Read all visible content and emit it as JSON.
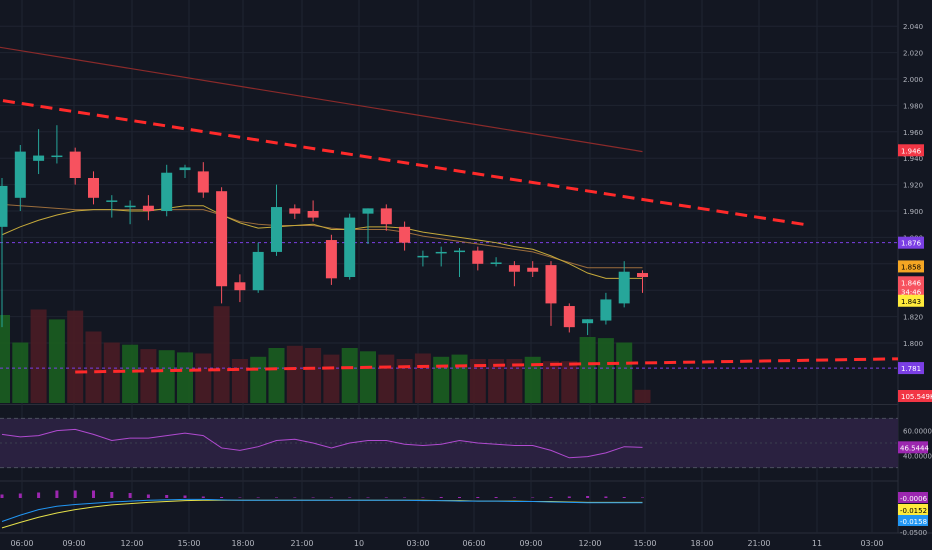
{
  "chart_data": {
    "type": "candlestick",
    "price_axis": {
      "ticks": [
        "2.040",
        "2.020",
        "2.000",
        "1.980",
        "1.960",
        "1.940",
        "1.920",
        "1.900",
        "1.880",
        "1.860",
        "1.840",
        "1.820",
        "1.800"
      ],
      "range": [
        1.797,
        2.048
      ]
    },
    "time_axis": {
      "ticks": [
        "06:00",
        "09:00",
        "12:00",
        "15:00",
        "18:00",
        "21:00",
        "10",
        "03:00",
        "06:00",
        "09:00",
        "12:00",
        "15:00",
        "18:00",
        "21:00",
        "11",
        "03:00"
      ]
    },
    "candles": [
      {
        "o": 1.888,
        "h": 1.925,
        "l": 1.812,
        "c": 1.919
      },
      {
        "o": 1.91,
        "h": 1.95,
        "l": 1.9,
        "c": 1.945
      },
      {
        "o": 1.938,
        "h": 1.962,
        "l": 1.928,
        "c": 1.942
      },
      {
        "o": 1.942,
        "h": 1.965,
        "l": 1.936,
        "c": 1.942
      },
      {
        "o": 1.945,
        "h": 1.948,
        "l": 1.92,
        "c": 1.925
      },
      {
        "o": 1.925,
        "h": 1.93,
        "l": 1.905,
        "c": 1.91
      },
      {
        "o": 1.908,
        "h": 1.912,
        "l": 1.895,
        "c": 1.908
      },
      {
        "o": 1.904,
        "h": 1.908,
        "l": 1.89,
        "c": 1.904
      },
      {
        "o": 1.904,
        "h": 1.912,
        "l": 1.893,
        "c": 1.9
      },
      {
        "o": 1.9,
        "h": 1.935,
        "l": 1.896,
        "c": 1.929
      },
      {
        "o": 1.931,
        "h": 1.935,
        "l": 1.925,
        "c": 1.933
      },
      {
        "o": 1.93,
        "h": 1.937,
        "l": 1.91,
        "c": 1.914
      },
      {
        "o": 1.915,
        "h": 1.918,
        "l": 1.83,
        "c": 1.843
      },
      {
        "o": 1.846,
        "h": 1.852,
        "l": 1.831,
        "c": 1.84
      },
      {
        "o": 1.84,
        "h": 1.876,
        "l": 1.838,
        "c": 1.869
      },
      {
        "o": 1.869,
        "h": 1.92,
        "l": 1.866,
        "c": 1.903
      },
      {
        "o": 1.902,
        "h": 1.905,
        "l": 1.894,
        "c": 1.898
      },
      {
        "o": 1.9,
        "h": 1.908,
        "l": 1.892,
        "c": 1.895
      },
      {
        "o": 1.878,
        "h": 1.882,
        "l": 1.844,
        "c": 1.849
      },
      {
        "o": 1.85,
        "h": 1.898,
        "l": 1.848,
        "c": 1.895
      },
      {
        "o": 1.898,
        "h": 1.902,
        "l": 1.875,
        "c": 1.902
      },
      {
        "o": 1.902,
        "h": 1.905,
        "l": 1.885,
        "c": 1.89
      },
      {
        "o": 1.888,
        "h": 1.892,
        "l": 1.87,
        "c": 1.876
      },
      {
        "o": 1.865,
        "h": 1.87,
        "l": 1.858,
        "c": 1.866
      },
      {
        "o": 1.868,
        "h": 1.873,
        "l": 1.858,
        "c": 1.869
      },
      {
        "o": 1.869,
        "h": 1.872,
        "l": 1.85,
        "c": 1.87
      },
      {
        "o": 1.87,
        "h": 1.873,
        "l": 1.855,
        "c": 1.86
      },
      {
        "o": 1.86,
        "h": 1.865,
        "l": 1.858,
        "c": 1.861
      },
      {
        "o": 1.859,
        "h": 1.862,
        "l": 1.843,
        "c": 1.854
      },
      {
        "o": 1.857,
        "h": 1.862,
        "l": 1.85,
        "c": 1.854
      },
      {
        "o": 1.859,
        "h": 1.862,
        "l": 1.813,
        "c": 1.83
      },
      {
        "o": 1.828,
        "h": 1.83,
        "l": 1.808,
        "c": 1.812
      },
      {
        "o": 1.815,
        "h": 1.818,
        "l": 1.806,
        "c": 1.818
      },
      {
        "o": 1.817,
        "h": 1.838,
        "l": 1.814,
        "c": 1.833
      },
      {
        "o": 1.83,
        "h": 1.862,
        "l": 1.827,
        "c": 1.854
      },
      {
        "o": 1.853,
        "h": 1.855,
        "l": 1.838,
        "c": 1.85
      }
    ],
    "volume_colors": [
      "g",
      "g",
      "r",
      "g",
      "r",
      "r",
      "r",
      "g",
      "r",
      "g",
      "g",
      "r",
      "r",
      "r",
      "g",
      "g",
      "r",
      "r",
      "r",
      "g",
      "g",
      "r",
      "r",
      "r",
      "g",
      "g",
      "r",
      "r",
      "r",
      "g",
      "r",
      "r",
      "g",
      "g",
      "g",
      "r"
    ],
    "volume_rel": [
      0.8,
      0.55,
      0.85,
      0.76,
      0.84,
      0.65,
      0.55,
      0.53,
      0.49,
      0.48,
      0.46,
      0.45,
      0.88,
      0.4,
      0.42,
      0.5,
      0.52,
      0.5,
      0.44,
      0.5,
      0.47,
      0.44,
      0.4,
      0.45,
      0.42,
      0.44,
      0.4,
      0.4,
      0.4,
      0.42,
      0.38,
      0.38,
      0.6,
      0.59,
      0.55,
      0.12
    ],
    "ema": [
      1.882,
      1.888,
      1.893,
      1.897,
      1.9,
      1.901,
      1.901,
      1.9,
      1.9,
      1.902,
      1.904,
      1.904,
      1.897,
      1.891,
      1.887,
      1.888,
      1.889,
      1.89,
      1.886,
      1.886,
      1.888,
      1.888,
      1.887,
      1.884,
      1.882,
      1.88,
      1.878,
      1.876,
      1.873,
      1.871,
      1.866,
      1.86,
      1.853,
      1.849,
      1.849,
      1.849
    ],
    "ma_long": [
      1.905,
      1.904,
      1.903,
      1.902,
      1.901,
      1.901,
      1.901,
      1.901,
      1.901,
      1.901,
      1.901,
      1.901,
      1.897,
      1.892,
      1.89,
      1.889,
      1.889,
      1.889,
      1.887,
      1.886,
      1.886,
      1.886,
      1.884,
      1.881,
      1.879,
      1.877,
      1.875,
      1.873,
      1.871,
      1.869,
      1.865,
      1.861,
      1.857,
      1.857,
      1.857,
      1.857
    ],
    "trendlines": {
      "upper_dashed": [
        [
          -2,
          1.988
        ],
        [
          43,
          1.887
        ]
      ],
      "lower_dashed": [
        [
          4,
          1.778
        ],
        [
          44,
          1.788
        ]
      ],
      "descending_red": [
        [
          -1,
          2.026
        ],
        [
          35,
          1.945
        ]
      ]
    },
    "horizontal_levels": [
      {
        "label": "1.876",
        "value": 1.876,
        "color": "#7b3fe4"
      },
      {
        "label": "1.781",
        "value": 1.781,
        "color": "#7b3fe4"
      }
    ],
    "price_badges": [
      {
        "label": "1.946",
        "value": 1.946,
        "bg": "#f23645",
        "fg": "#ffffff"
      },
      {
        "label": "1.876",
        "value": 1.876,
        "bg": "#7b3fe4",
        "fg": "#ffffff"
      },
      {
        "label": "1.858",
        "value": 1.858,
        "bg": "#f5a623",
        "fg": "#000000"
      },
      {
        "label": "1.846",
        "value": 1.846,
        "bg": "#f7525f",
        "fg": "#ffffff"
      },
      {
        "label": "34:46",
        "value": 1.839,
        "bg": "#f7525f",
        "fg": "#ffffff"
      },
      {
        "label": "1.843",
        "value": 1.832,
        "bg": "#ffeb3b",
        "fg": "#000000"
      },
      {
        "label": "1.781",
        "value": 1.781,
        "bg": "#7b3fe4",
        "fg": "#ffffff"
      },
      {
        "label": "105.549K",
        "value": null,
        "bg": "#f23645",
        "fg": "#ffffff"
      }
    ],
    "rsi": {
      "ticks": [
        "60.0000",
        "40.0000"
      ],
      "range": [
        20,
        80
      ],
      "band": [
        30,
        70
      ],
      "value_label": "46.5444",
      "values": [
        57,
        55,
        56,
        60,
        61,
        57,
        52,
        54,
        54,
        56,
        58,
        56,
        46,
        44,
        47,
        52,
        53,
        50,
        46,
        50,
        52,
        52,
        49,
        48,
        49,
        52,
        50,
        49,
        48,
        48,
        44,
        38,
        39,
        42,
        47,
        46.5
      ]
    },
    "macd": {
      "labels": [
        {
          "text": "-0.0006",
          "bg": "#9c27b0",
          "fg": "#ffffff"
        },
        {
          "text": "-0.0152",
          "bg": "#ffeb3b",
          "fg": "#000000"
        },
        {
          "text": "-0.0158",
          "bg": "#2196f3",
          "fg": "#ffffff"
        },
        {
          "text": "-0.0500",
          "bg": "transparent",
          "fg": "#b2b5be"
        }
      ],
      "hist": [
        0.35,
        0.45,
        0.55,
        0.75,
        0.75,
        0.75,
        0.6,
        0.5,
        0.35,
        0.3,
        0.25,
        0.15,
        0.1,
        0.05,
        0.05,
        0.05,
        0.05,
        0.05,
        0.05,
        0.05,
        0.05,
        0.05,
        0.05,
        0.05,
        0.1,
        0.1,
        0.1,
        0.1,
        0.05,
        0.05,
        0.1,
        0.15,
        0.2,
        0.15,
        0.1,
        0.05
      ],
      "macd_line": [
        -0.06,
        -0.045,
        -0.032,
        -0.024,
        -0.02,
        -0.017,
        -0.014,
        -0.012,
        -0.01,
        -0.009,
        -0.008,
        -0.008,
        -0.009,
        -0.01,
        -0.01,
        -0.01,
        -0.01,
        -0.01,
        -0.01,
        -0.01,
        -0.01,
        -0.01,
        -0.01,
        -0.011,
        -0.011,
        -0.012,
        -0.012,
        -0.012,
        -0.013,
        -0.013,
        -0.014,
        -0.015,
        -0.016,
        -0.016,
        -0.016,
        -0.016
      ],
      "signal_line": [
        -0.075,
        -0.062,
        -0.05,
        -0.04,
        -0.032,
        -0.026,
        -0.021,
        -0.018,
        -0.015,
        -0.013,
        -0.011,
        -0.01,
        -0.01,
        -0.01,
        -0.01,
        -0.01,
        -0.01,
        -0.01,
        -0.01,
        -0.01,
        -0.01,
        -0.01,
        -0.01,
        -0.01,
        -0.011,
        -0.011,
        -0.012,
        -0.012,
        -0.012,
        -0.013,
        -0.013,
        -0.014,
        -0.015,
        -0.015,
        -0.015,
        -0.015
      ]
    }
  },
  "colors": {
    "background": "#131722",
    "grid": "#1f2431",
    "up": "#26a69a",
    "down": "#f7525f",
    "up_volume": "#1b5e20",
    "down_volume": "#4a1c25",
    "trendline": "#ff2a2a",
    "descending_line": "#8b2a2a",
    "ema": "#c5a93b",
    "ma_long": "#9b6d3c",
    "rsi_line": "#b04ad0",
    "rsi_band": "#2a2140",
    "macd_line": "#2196f3",
    "signal_line": "#e5e04a",
    "hist": "#9c27b0",
    "axis_text": "#b2b5be"
  }
}
